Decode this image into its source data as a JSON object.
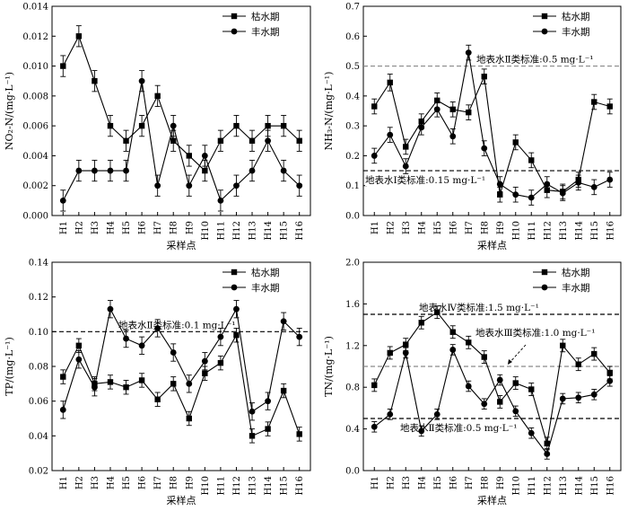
{
  "chart_data": [
    {
      "type": "line",
      "panel": "NO2",
      "ylabel": "NO₂-N/(mg·L⁻¹)",
      "xlabel": "采样点",
      "categories": [
        "H1",
        "H2",
        "H3",
        "H4",
        "H5",
        "H6",
        "H7",
        "H8",
        "H9",
        "H10",
        "H11",
        "H12",
        "H13",
        "H14",
        "H15",
        "H16"
      ],
      "ylim": [
        0,
        0.014
      ],
      "yticks": [
        0.0,
        0.002,
        0.004,
        0.006,
        0.008,
        0.01,
        0.012,
        0.014
      ],
      "ytick_labels": [
        "0.000",
        "0.002",
        "0.004",
        "0.006",
        "0.008",
        "0.010",
        "0.012",
        "0.014"
      ],
      "legend_position": "top-right",
      "series": [
        {
          "name": "枯水期",
          "marker": "square",
          "values": [
            0.01,
            0.012,
            0.009,
            0.006,
            0.005,
            0.006,
            0.008,
            0.005,
            0.004,
            0.003,
            0.005,
            0.006,
            0.005,
            0.006,
            0.006,
            0.005
          ],
          "errors": [
            0.0007,
            0.0007,
            0.0007,
            0.0007,
            0.0007,
            0.0007,
            0.0007,
            0.0007,
            0.0007,
            0.0007,
            0.0007,
            0.0007,
            0.0007,
            0.0007,
            0.0007,
            0.0007
          ]
        },
        {
          "name": "丰水期",
          "marker": "circle",
          "values": [
            0.001,
            0.003,
            0.003,
            0.003,
            0.003,
            0.009,
            0.002,
            0.006,
            0.002,
            0.004,
            0.001,
            0.002,
            0.003,
            0.005,
            0.003,
            0.002
          ],
          "errors": [
            0.0007,
            0.0007,
            0.0007,
            0.0007,
            0.0007,
            0.0007,
            0.0007,
            0.0007,
            0.0007,
            0.0007,
            0.0007,
            0.0007,
            0.0007,
            0.0007,
            0.0007,
            0.0007
          ]
        }
      ],
      "reference_lines": []
    },
    {
      "type": "line",
      "panel": "NH3",
      "ylabel": "NH₃-N/(mg·L⁻¹)",
      "xlabel": "采样点",
      "categories": [
        "H1",
        "H2",
        "H3",
        "H4",
        "H5",
        "H6",
        "H7",
        "H8",
        "H9",
        "H10",
        "H11",
        "H12",
        "H13",
        "H14",
        "H15",
        "H16"
      ],
      "ylim": [
        0,
        0.7
      ],
      "yticks": [
        0.0,
        0.1,
        0.2,
        0.3,
        0.4,
        0.5,
        0.6,
        0.7
      ],
      "ytick_labels": [
        "0.0",
        "0.1",
        "0.2",
        "0.3",
        "0.4",
        "0.5",
        "0.6",
        "0.7"
      ],
      "legend_position": "top-right",
      "series": [
        {
          "name": "枯水期",
          "marker": "square",
          "values": [
            0.365,
            0.445,
            0.23,
            0.315,
            0.385,
            0.355,
            0.345,
            0.465,
            0.07,
            0.245,
            0.185,
            0.085,
            0.08,
            0.12,
            0.38,
            0.365
          ],
          "errors": [
            0.025,
            0.028,
            0.025,
            0.025,
            0.025,
            0.025,
            0.025,
            0.025,
            0.025,
            0.025,
            0.025,
            0.025,
            0.025,
            0.025,
            0.025,
            0.025
          ]
        },
        {
          "name": "丰水期",
          "marker": "circle",
          "values": [
            0.2,
            0.27,
            0.165,
            0.295,
            0.355,
            0.265,
            0.545,
            0.225,
            0.105,
            0.07,
            0.06,
            0.105,
            0.075,
            0.11,
            0.095,
            0.12
          ],
          "errors": [
            0.025,
            0.025,
            0.025,
            0.025,
            0.025,
            0.025,
            0.025,
            0.025,
            0.025,
            0.025,
            0.025,
            0.025,
            0.025,
            0.025,
            0.025,
            0.025
          ]
        }
      ],
      "reference_lines": [
        {
          "value": 0.5,
          "label": "地表水Ⅱ类标准:0.5 mg·L⁻¹",
          "style": "gray-dashed",
          "label_anchor": "right"
        },
        {
          "value": 0.15,
          "label": "地表水Ⅰ类标准:0.15 mg·L⁻¹",
          "style": "black-dashed",
          "label_anchor": "left"
        }
      ]
    },
    {
      "type": "line",
      "panel": "TP",
      "ylabel": "TP/(mg·L⁻¹)",
      "xlabel": "采样点",
      "categories": [
        "H1",
        "H2",
        "H3",
        "H4",
        "H5",
        "H6",
        "H7",
        "H8",
        "H9",
        "H10",
        "H11",
        "H12",
        "H13",
        "H14",
        "H15",
        "H16"
      ],
      "ylim": [
        0.02,
        0.14
      ],
      "yticks": [
        0.02,
        0.04,
        0.06,
        0.08,
        0.1,
        0.12,
        0.14
      ],
      "ytick_labels": [
        "0.02",
        "0.04",
        "0.06",
        "0.08",
        "0.10",
        "0.12",
        "0.14"
      ],
      "legend_position": "top-right",
      "series": [
        {
          "name": "枯水期",
          "marker": "square",
          "values": [
            0.074,
            0.092,
            0.07,
            0.071,
            0.068,
            0.072,
            0.061,
            0.07,
            0.05,
            0.076,
            0.082,
            0.098,
            0.04,
            0.044,
            0.066,
            0.041
          ],
          "errors": [
            0.004,
            0.004,
            0.004,
            0.004,
            0.004,
            0.004,
            0.004,
            0.004,
            0.004,
            0.004,
            0.004,
            0.004,
            0.004,
            0.004,
            0.004,
            0.004
          ]
        },
        {
          "name": "丰水期",
          "marker": "circle",
          "values": [
            0.055,
            0.084,
            0.068,
            0.113,
            0.096,
            0.092,
            0.102,
            0.088,
            0.07,
            0.083,
            0.097,
            0.113,
            0.054,
            0.06,
            0.106,
            0.097
          ],
          "errors": [
            0.005,
            0.005,
            0.005,
            0.005,
            0.005,
            0.005,
            0.005,
            0.005,
            0.005,
            0.005,
            0.005,
            0.005,
            0.005,
            0.005,
            0.005,
            0.005
          ]
        }
      ],
      "reference_lines": [
        {
          "value": 0.1,
          "label": "地表水Ⅱ类标准:0.1 mg·L⁻¹",
          "style": "black-dashed",
          "label_anchor": "left"
        }
      ]
    },
    {
      "type": "line",
      "panel": "TN",
      "ylabel": "TN/(mg·L⁻¹)",
      "xlabel": "采样点",
      "categories": [
        "H1",
        "H2",
        "H3",
        "H4",
        "H5",
        "H6",
        "H7",
        "H8",
        "H9",
        "H10",
        "H11",
        "H12",
        "H13",
        "H14",
        "H15",
        "H16"
      ],
      "ylim": [
        0,
        2.0
      ],
      "yticks": [
        0.0,
        0.4,
        0.8,
        1.2,
        1.6,
        2.0
      ],
      "ytick_labels": [
        "0.0",
        "0.4",
        "0.8",
        "1.2",
        "1.6",
        "2.0"
      ],
      "legend_position": "top-right",
      "series": [
        {
          "name": "枯水期",
          "marker": "square",
          "values": [
            0.82,
            1.13,
            1.21,
            1.42,
            1.52,
            1.33,
            1.23,
            1.09,
            0.66,
            0.84,
            0.78,
            0.26,
            1.2,
            1.02,
            1.12,
            0.94
          ],
          "errors": [
            0.06,
            0.06,
            0.06,
            0.06,
            0.06,
            0.06,
            0.06,
            0.06,
            0.06,
            0.06,
            0.06,
            0.06,
            0.06,
            0.06,
            0.06,
            0.06
          ]
        },
        {
          "name": "丰水期",
          "marker": "circle",
          "values": [
            0.42,
            0.54,
            1.13,
            0.38,
            0.54,
            1.16,
            0.81,
            0.64,
            0.87,
            0.57,
            0.36,
            0.16,
            0.69,
            0.7,
            0.73,
            0.86
          ],
          "errors": [
            0.05,
            0.05,
            0.05,
            0.05,
            0.05,
            0.05,
            0.05,
            0.05,
            0.05,
            0.05,
            0.05,
            0.05,
            0.05,
            0.05,
            0.05,
            0.05
          ]
        }
      ],
      "reference_lines": [
        {
          "value": 1.5,
          "label": "地表水Ⅳ类标准:1.5 mg·L⁻¹",
          "style": "black-dashed",
          "label_anchor": "center"
        },
        {
          "value": 1.0,
          "label": "地表水Ⅲ类标准:1.0 mg·L⁻¹",
          "style": "gray-dashed",
          "label_anchor": "right-above"
        },
        {
          "value": 0.5,
          "label": "地表水Ⅱ类标准:0.5 mg·L⁻¹",
          "style": "black-dashed",
          "label_anchor": "below"
        }
      ]
    }
  ]
}
